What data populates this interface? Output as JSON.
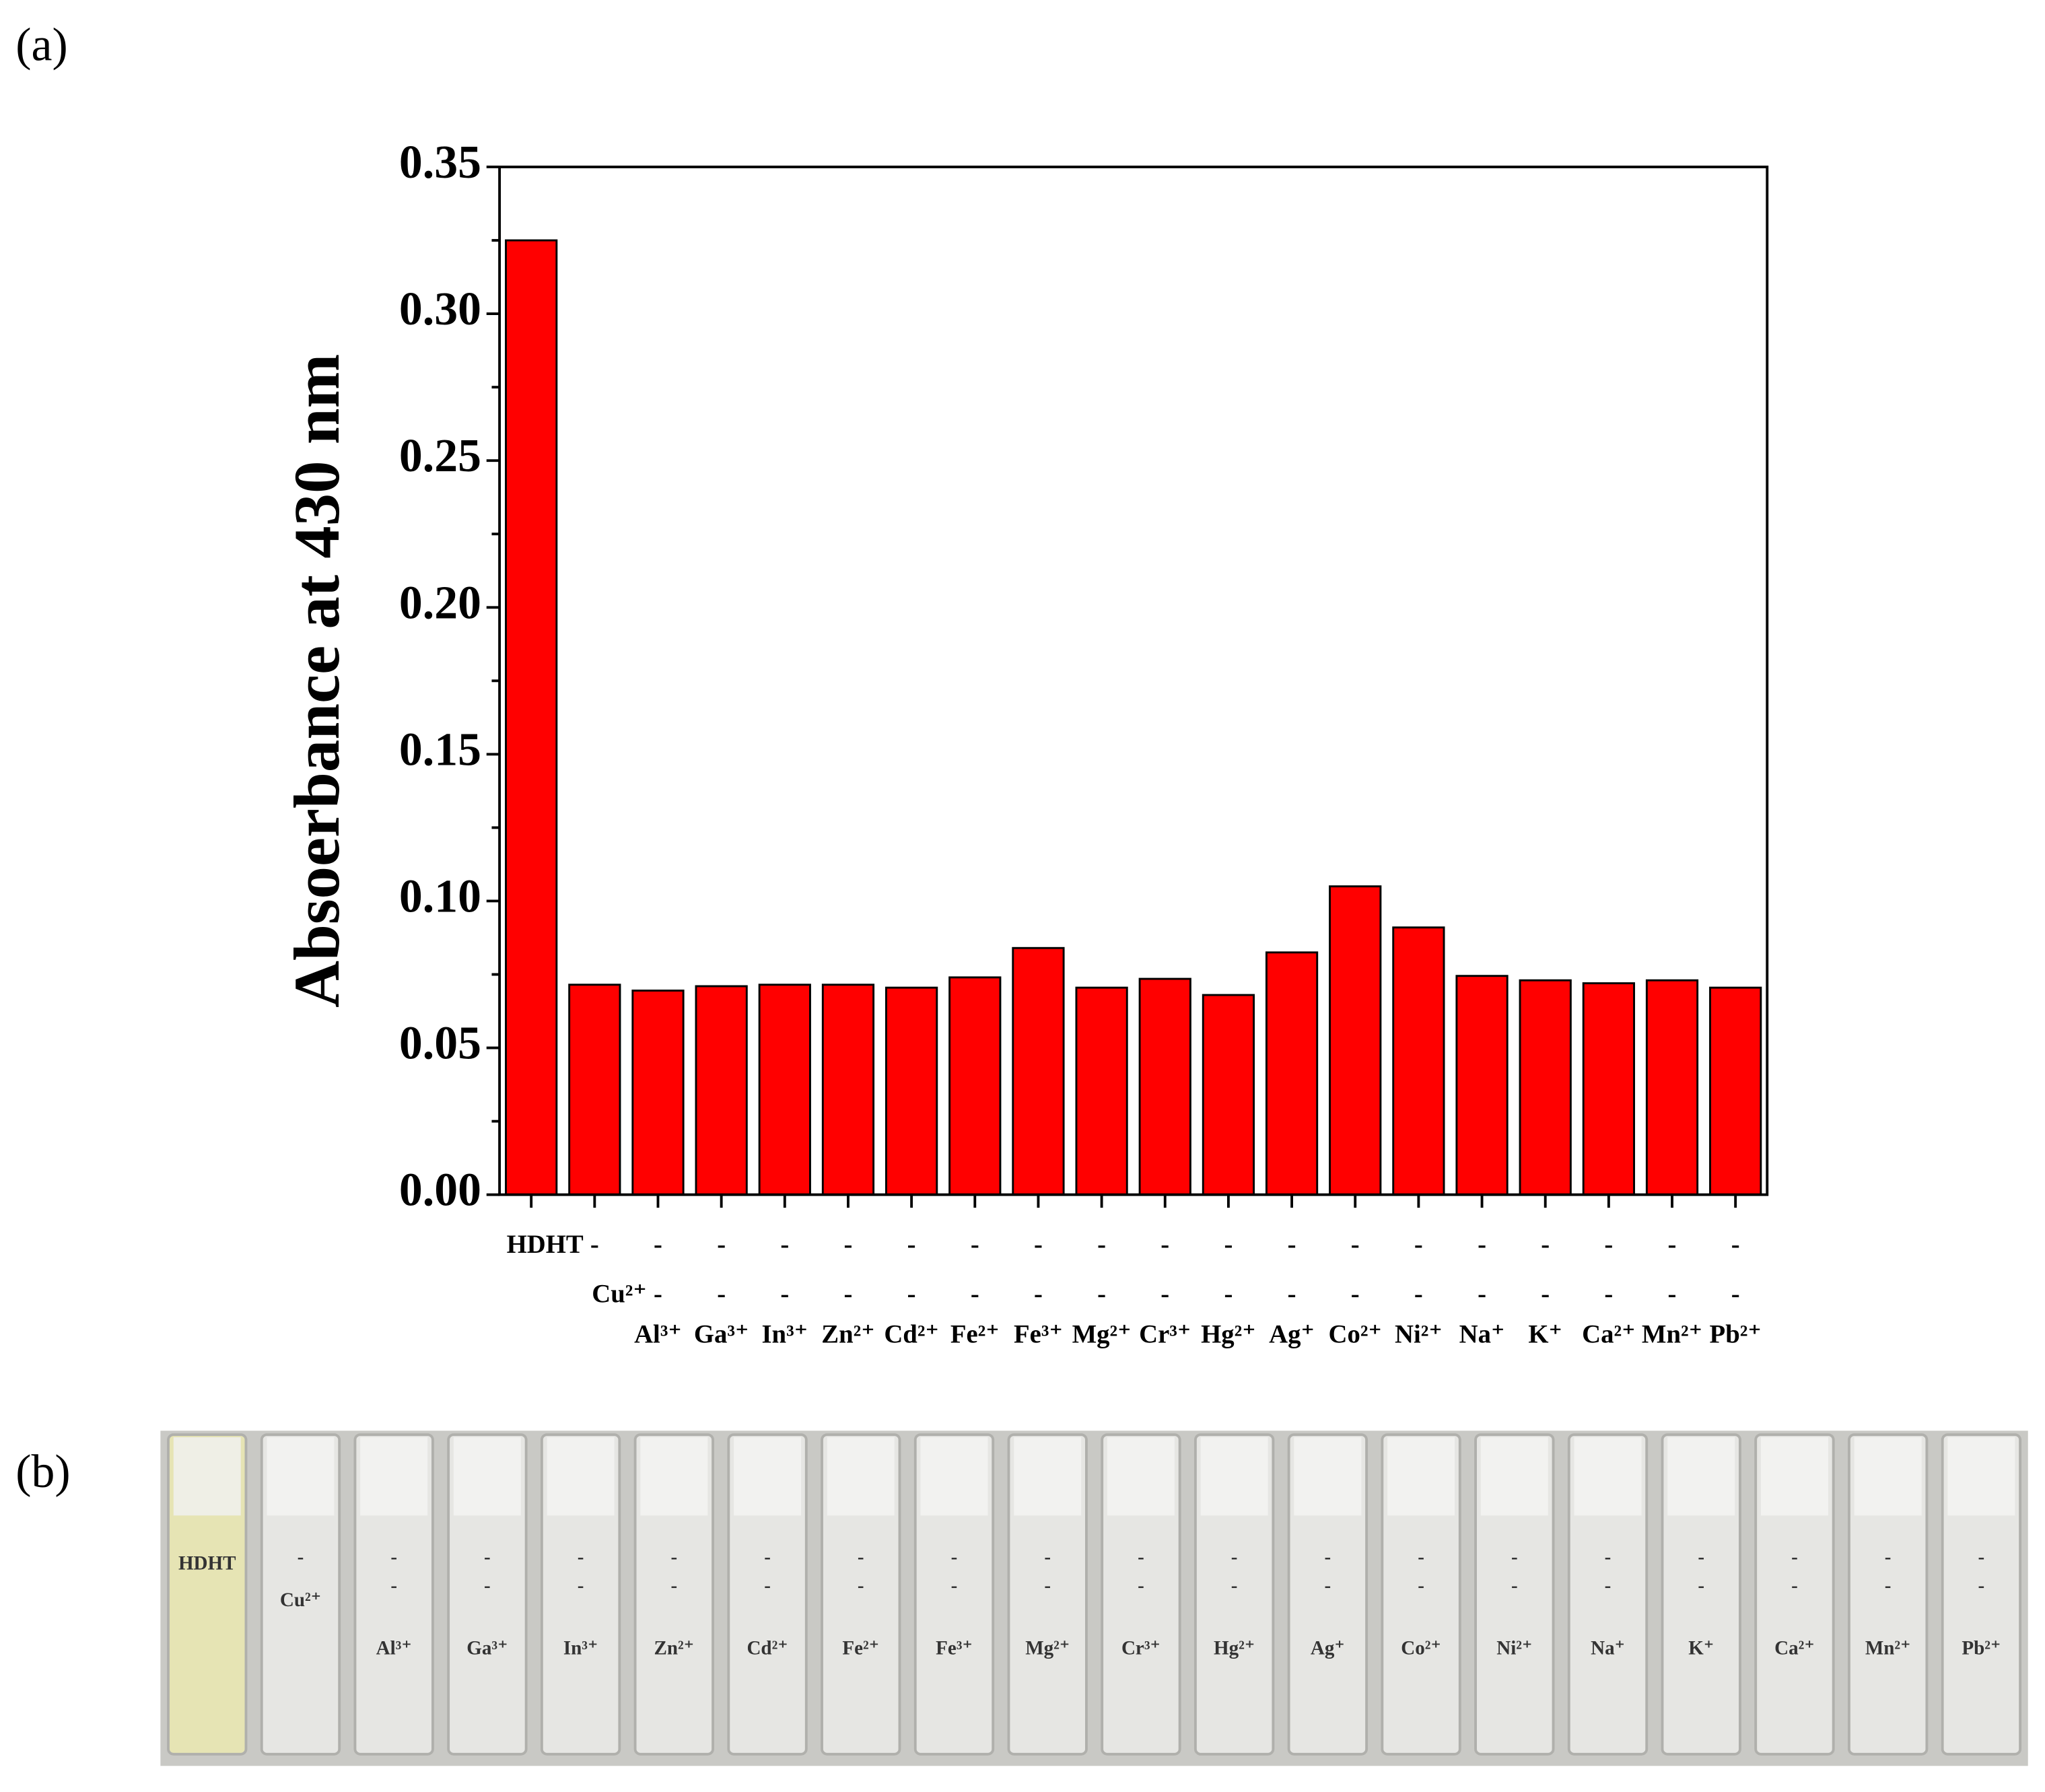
{
  "panel_labels": [
    "(a)",
    "(b)"
  ],
  "chart_data": {
    "type": "bar",
    "ylabel": "Absoerbance at 430 nm",
    "categories": [
      "HDHT",
      "Cu²⁺",
      "Al³⁺",
      "Ga³⁺",
      "In³⁺",
      "Zn²⁺",
      "Cd²⁺",
      "Fe²⁺",
      "Fe³⁺",
      "Mg²⁺",
      "Cr³⁺",
      "Hg²⁺",
      "Ag⁺",
      "Co²⁺",
      "Ni²⁺",
      "Na⁺",
      "K⁺",
      "Ca²⁺",
      "Mn²⁺",
      "Pb²⁺"
    ],
    "label_rows": [
      [
        "HDHT",
        "-",
        "-",
        "-",
        "-",
        "-",
        "-",
        "-",
        "-",
        "-",
        "-",
        "-",
        "-",
        "-",
        "-",
        "-",
        "-",
        "-",
        "-",
        "-"
      ],
      [
        null,
        "Cu²⁺",
        "-",
        "-",
        "-",
        "-",
        "-",
        "-",
        "-",
        "-",
        "-",
        "-",
        "-",
        "-",
        "-",
        "-",
        "-",
        "-",
        "-",
        "-"
      ],
      [
        null,
        null,
        "Al³⁺",
        "Ga³⁺",
        "In³⁺",
        "Zn²⁺",
        "Cd²⁺",
        "Fe²⁺",
        "Fe³⁺",
        "Mg²⁺",
        "Cr³⁺",
        "Hg²⁺",
        "Ag⁺",
        "Co²⁺",
        "Ni²⁺",
        "Na⁺",
        "K⁺",
        "Ca²⁺",
        "Mn²⁺",
        "Pb²⁺"
      ]
    ],
    "values": [
      0.325,
      0.0715,
      0.0695,
      0.071,
      0.0715,
      0.0715,
      0.0705,
      0.074,
      0.084,
      0.0705,
      0.0735,
      0.068,
      0.0825,
      0.105,
      0.091,
      0.0745,
      0.073,
      0.072,
      0.073,
      0.0705
    ],
    "color": "#ff0000",
    "ylim": [
      0,
      0.35
    ],
    "yticks": [
      {
        "value": 0,
        "label": "0.00"
      },
      {
        "value": 0.05,
        "label": "0.05"
      },
      {
        "value": 0.1,
        "label": "0.10"
      },
      {
        "value": 0.15,
        "label": "0.15"
      },
      {
        "value": 0.2,
        "label": "0.20"
      },
      {
        "value": 0.25,
        "label": "0.25"
      },
      {
        "value": 0.3,
        "label": "0.30"
      },
      {
        "value": 0.35,
        "label": "0.35"
      }
    ],
    "yminorticks": [
      0.025,
      0.075,
      0.125,
      0.175,
      0.225,
      0.275,
      0.325
    ]
  },
  "photo": {
    "labels": [
      [
        "HDHT"
      ],
      [
        "-",
        "Cu²⁺"
      ],
      [
        "-",
        "-",
        "Al³⁺"
      ],
      [
        "-",
        "-",
        "Ga³⁺"
      ],
      [
        "-",
        "-",
        "In³⁺"
      ],
      [
        "-",
        "-",
        "Zn²⁺"
      ],
      [
        "-",
        "-",
        "Cd²⁺"
      ],
      [
        "-",
        "-",
        "Fe²⁺"
      ],
      [
        "-",
        "-",
        "Fe³⁺"
      ],
      [
        "-",
        "-",
        "Mg²⁺"
      ],
      [
        "-",
        "-",
        "Cr³⁺"
      ],
      [
        "-",
        "-",
        "Hg²⁺"
      ],
      [
        "-",
        "-",
        "Ag⁺"
      ],
      [
        "-",
        "-",
        "Co²⁺"
      ],
      [
        "-",
        "-",
        "Ni²⁺"
      ],
      [
        "-",
        "-",
        "Na⁺"
      ],
      [
        "-",
        "-",
        "K⁺"
      ],
      [
        "-",
        "-",
        "Ca²⁺"
      ],
      [
        "-",
        "-",
        "Mn²⁺"
      ],
      [
        "-",
        "-",
        "Pb²⁺"
      ]
    ]
  }
}
